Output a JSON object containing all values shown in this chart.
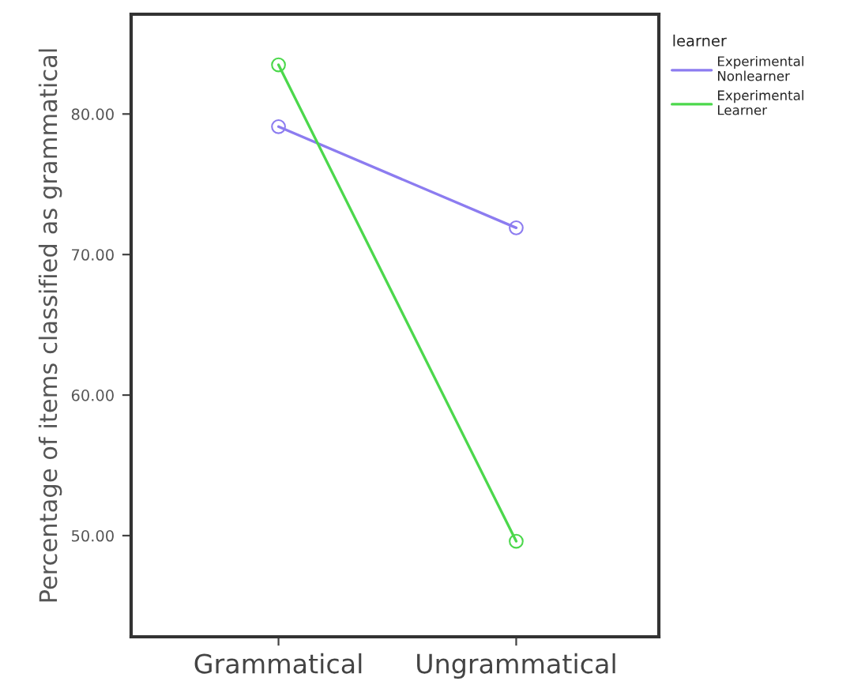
{
  "chart_data": {
    "type": "line",
    "ylabel": "Percentage of items classified as grammatical",
    "legend_title": "learner",
    "categories": [
      "Grammatical",
      "Ungrammatical"
    ],
    "series": [
      {
        "name": "Experimental\nNonlearner",
        "color": "#8c7cf0",
        "values": [
          79.1,
          71.9
        ]
      },
      {
        "name": "Experimental\nLearner",
        "color": "#4cd84c",
        "values": [
          83.5,
          49.6
        ]
      }
    ],
    "ylim": [
      42.8,
      87.1
    ],
    "yticks": [
      {
        "value": 50,
        "label": "50.00"
      },
      {
        "value": 60,
        "label": "60.00"
      },
      {
        "value": 70,
        "label": "70.00"
      },
      {
        "value": 80,
        "label": "80.00"
      }
    ],
    "grid": false,
    "legend": "right",
    "marker": "circle",
    "line_style": "solid"
  }
}
